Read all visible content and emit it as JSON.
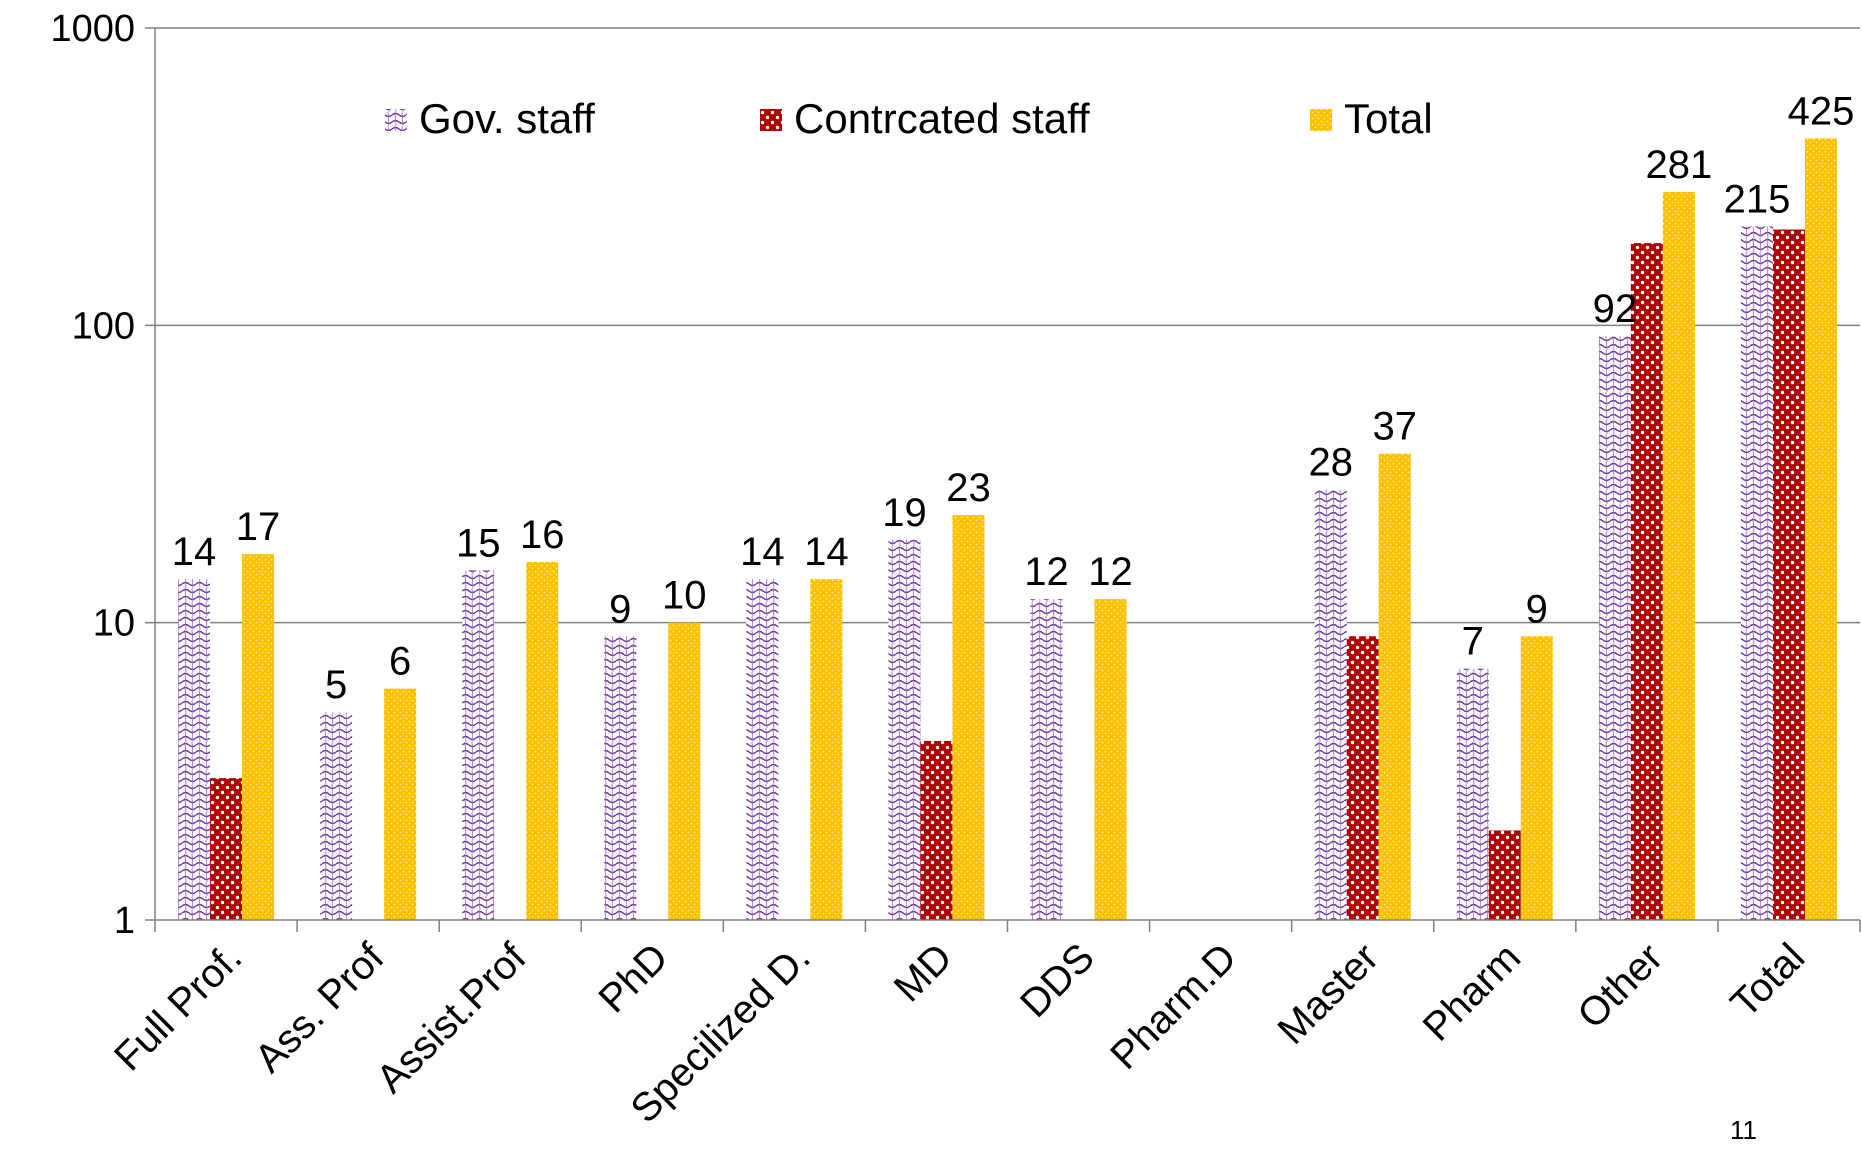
{
  "page_number": "11",
  "colors": {
    "gov": "#7030a0",
    "contracted": "#c00000",
    "contracted_dark": "#8b0000",
    "total": "#f5b800",
    "total_fill": "#ffc000",
    "axis": "#808080",
    "grid": "#808080"
  },
  "chart_data": {
    "type": "bar",
    "yscale": "log",
    "ylim": [
      1,
      1000
    ],
    "yticks": [
      1,
      10,
      100,
      1000
    ],
    "ytick_labels": [
      "1",
      "10",
      "100",
      "1000"
    ],
    "grid": "horizontal",
    "legend_position": "top",
    "categories": [
      "Full Prof.",
      "Ass. Prof",
      "Assist.Prof",
      "PhD",
      "Specilized D.",
      "MD",
      "DDS",
      "Pharm.D",
      "Master",
      "Pharm",
      "Other",
      "Total"
    ],
    "series": [
      {
        "name": "Gov. staff",
        "values": [
          14,
          5,
          15,
          9,
          14,
          19,
          12,
          null,
          28,
          7,
          92,
          215
        ],
        "labels": [
          "14",
          "5",
          "15",
          "9",
          "14",
          "19",
          "12",
          "",
          "28",
          "7",
          "92",
          "215"
        ]
      },
      {
        "name": "Contrcated staff",
        "values": [
          3,
          null,
          null,
          null,
          null,
          4,
          null,
          null,
          9,
          2,
          189,
          210
        ],
        "labels": [
          "",
          "",
          "",
          "",
          "",
          "",
          "",
          "",
          "",
          "",
          "",
          ""
        ]
      },
      {
        "name": "Total",
        "values": [
          17,
          6,
          16,
          10,
          14,
          23,
          12,
          null,
          37,
          9,
          281,
          425
        ],
        "labels": [
          "17",
          "6",
          "16",
          "10",
          "14",
          "23",
          "12",
          "",
          "37",
          "9",
          "281",
          "425"
        ]
      }
    ]
  }
}
